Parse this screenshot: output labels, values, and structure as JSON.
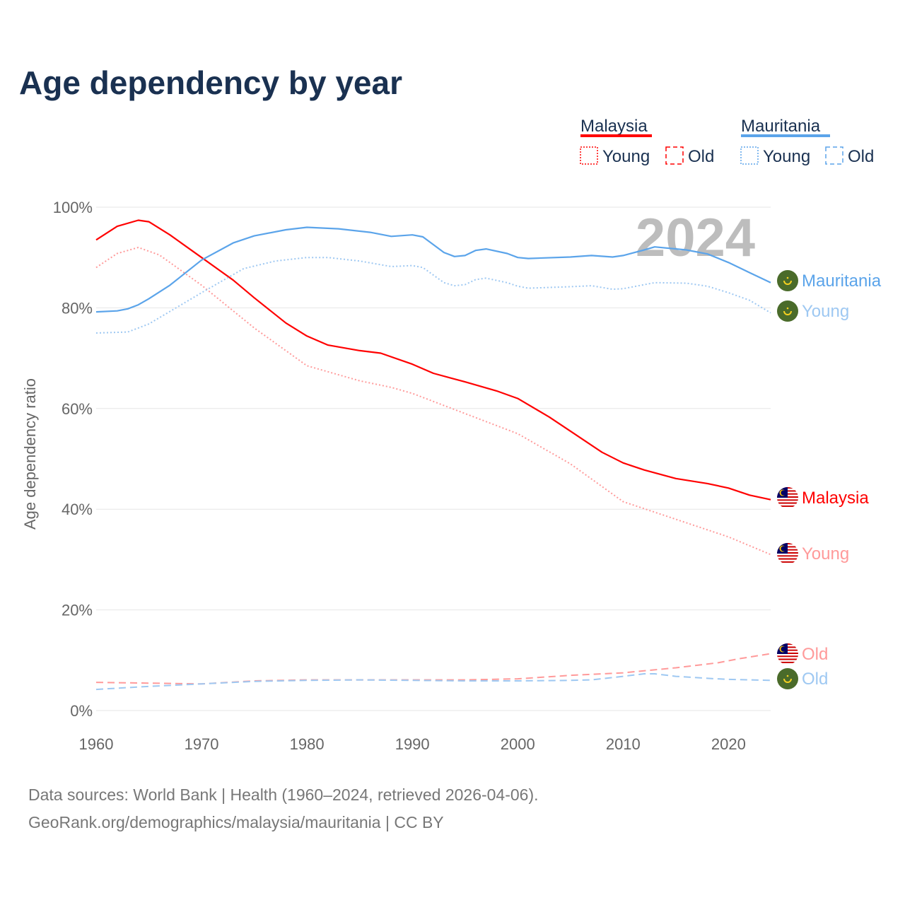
{
  "chart_data": {
    "type": "line",
    "title": "Age dependency by year",
    "ylabel": "Age dependency ratio",
    "xlabel": "",
    "xlim": [
      1960,
      2024
    ],
    "ylim": [
      0,
      100
    ],
    "x_ticks": [
      "1960",
      "1970",
      "1980",
      "1990",
      "2000",
      "2010",
      "2020"
    ],
    "y_ticks": [
      "0%",
      "20%",
      "40%",
      "60%",
      "80%",
      "100%"
    ],
    "year_watermark": "2024",
    "grid": true,
    "legend": {
      "placement": "top-right",
      "groups": [
        {
          "name": "Malaysia",
          "color": "#ff0000",
          "items": [
            "Young",
            "Old"
          ]
        },
        {
          "name": "Mauritania",
          "color": "#5ba4ea",
          "items": [
            "Young",
            "Old"
          ]
        }
      ]
    },
    "series": [
      {
        "name": "Malaysia",
        "label": "Malaysia",
        "color": "#ff0000",
        "dash": "solid",
        "points": [
          [
            1960,
            93.5
          ],
          [
            1962,
            96.2
          ],
          [
            1964,
            97.4
          ],
          [
            1965,
            97.1
          ],
          [
            1967,
            94.5
          ],
          [
            1970,
            90
          ],
          [
            1973,
            85.5
          ],
          [
            1975,
            82
          ],
          [
            1978,
            77
          ],
          [
            1980,
            74.4
          ],
          [
            1982,
            72.6
          ],
          [
            1985,
            71.5
          ],
          [
            1987,
            71
          ],
          [
            1990,
            68.8
          ],
          [
            1992,
            67
          ],
          [
            1995,
            65.3
          ],
          [
            1998,
            63.5
          ],
          [
            2000,
            62
          ],
          [
            2003,
            58.3
          ],
          [
            2005,
            55.5
          ],
          [
            2008,
            51.3
          ],
          [
            2010,
            49.2
          ],
          [
            2012,
            47.8
          ],
          [
            2015,
            46.1
          ],
          [
            2018,
            45.1
          ],
          [
            2020,
            44.2
          ],
          [
            2022,
            42.8
          ],
          [
            2024,
            41.9
          ]
        ]
      },
      {
        "name": "Malaysia Young",
        "label": "Young",
        "color": "#ff9a9a",
        "dash": "dotted",
        "points": [
          [
            1960,
            88
          ],
          [
            1962,
            90.8
          ],
          [
            1964,
            92
          ],
          [
            1966,
            90.5
          ],
          [
            1970,
            84.5
          ],
          [
            1975,
            76
          ],
          [
            1980,
            68.5
          ],
          [
            1985,
            65.5
          ],
          [
            1988,
            64.2
          ],
          [
            1990,
            63
          ],
          [
            1995,
            59
          ],
          [
            2000,
            55
          ],
          [
            2005,
            49
          ],
          [
            2010,
            41.5
          ],
          [
            2015,
            38
          ],
          [
            2020,
            34.5
          ],
          [
            2024,
            31
          ]
        ]
      },
      {
        "name": "Malaysia Old",
        "label": "Old",
        "color": "#ff9a9a",
        "dash": "dashed",
        "points": [
          [
            1960,
            5.6
          ],
          [
            1970,
            5.3
          ],
          [
            1975,
            5.9
          ],
          [
            1980,
            6.1
          ],
          [
            1995,
            6.1
          ],
          [
            2000,
            6.3
          ],
          [
            2005,
            7
          ],
          [
            2010,
            7.5
          ],
          [
            2015,
            8.5
          ],
          [
            2019,
            9.5
          ],
          [
            2021,
            10.3
          ],
          [
            2024,
            11.3
          ]
        ]
      },
      {
        "name": "Mauritania",
        "label": "Mauritania",
        "color": "#5ba4ea",
        "dash": "solid",
        "points": [
          [
            1960,
            79.2
          ],
          [
            1962,
            79.4
          ],
          [
            1963,
            79.8
          ],
          [
            1964,
            80.6
          ],
          [
            1965,
            81.8
          ],
          [
            1967,
            84.5
          ],
          [
            1970,
            89.5
          ],
          [
            1973,
            92.9
          ],
          [
            1975,
            94.3
          ],
          [
            1978,
            95.5
          ],
          [
            1980,
            96
          ],
          [
            1983,
            95.7
          ],
          [
            1986,
            95
          ],
          [
            1988,
            94.2
          ],
          [
            1990,
            94.5
          ],
          [
            1991,
            94.1
          ],
          [
            1993,
            91
          ],
          [
            1994,
            90.2
          ],
          [
            1995,
            90.4
          ],
          [
            1996,
            91.4
          ],
          [
            1997,
            91.7
          ],
          [
            1999,
            90.8
          ],
          [
            2000,
            90
          ],
          [
            2001,
            89.8
          ],
          [
            2005,
            90.1
          ],
          [
            2007,
            90.4
          ],
          [
            2009,
            90.1
          ],
          [
            2010,
            90.4
          ],
          [
            2012,
            91.5
          ],
          [
            2013,
            92.1
          ],
          [
            2016,
            91.5
          ],
          [
            2018,
            90.7
          ],
          [
            2020,
            89
          ],
          [
            2022,
            87
          ],
          [
            2024,
            85
          ]
        ]
      },
      {
        "name": "Mauritania Young",
        "label": "Young",
        "color": "#9ec8f2",
        "dash": "dotted",
        "points": [
          [
            1960,
            75
          ],
          [
            1963,
            75.2
          ],
          [
            1965,
            76.8
          ],
          [
            1970,
            83
          ],
          [
            1974,
            87.8
          ],
          [
            1977,
            89.3
          ],
          [
            1980,
            90
          ],
          [
            1982,
            90
          ],
          [
            1985,
            89.3
          ],
          [
            1988,
            88.2
          ],
          [
            1990,
            88.4
          ],
          [
            1991,
            88
          ],
          [
            1993,
            85
          ],
          [
            1994,
            84.4
          ],
          [
            1995,
            84.6
          ],
          [
            1996,
            85.6
          ],
          [
            1997,
            85.9
          ],
          [
            1999,
            85
          ],
          [
            2000,
            84.3
          ],
          [
            2001,
            83.9
          ],
          [
            2005,
            84.2
          ],
          [
            2007,
            84.4
          ],
          [
            2009,
            83.7
          ],
          [
            2010,
            83.8
          ],
          [
            2013,
            85
          ],
          [
            2016,
            84.9
          ],
          [
            2018,
            84.3
          ],
          [
            2020,
            83
          ],
          [
            2022,
            81.5
          ],
          [
            2024,
            79
          ]
        ]
      },
      {
        "name": "Mauritania Old",
        "label": "Old",
        "color": "#9ec8f2",
        "dash": "dashed",
        "points": [
          [
            1960,
            4.2
          ],
          [
            1965,
            4.8
          ],
          [
            1970,
            5.3
          ],
          [
            1975,
            5.8
          ],
          [
            1980,
            6
          ],
          [
            1985,
            6.1
          ],
          [
            1990,
            6
          ],
          [
            1995,
            5.9
          ],
          [
            2000,
            5.9
          ],
          [
            2005,
            6
          ],
          [
            2007,
            6.1
          ],
          [
            2010,
            6.8
          ],
          [
            2012,
            7.3
          ],
          [
            2013,
            7.3
          ],
          [
            2015,
            6.8
          ],
          [
            2018,
            6.4
          ],
          [
            2020,
            6.2
          ],
          [
            2024,
            6
          ]
        ]
      }
    ]
  },
  "footer": {
    "line1": "Data sources: World Bank | Health (1960–2024, retrieved 2026-04-06).",
    "line2": "GeoRank.org/demographics/malaysia/mauritania | CC BY"
  }
}
